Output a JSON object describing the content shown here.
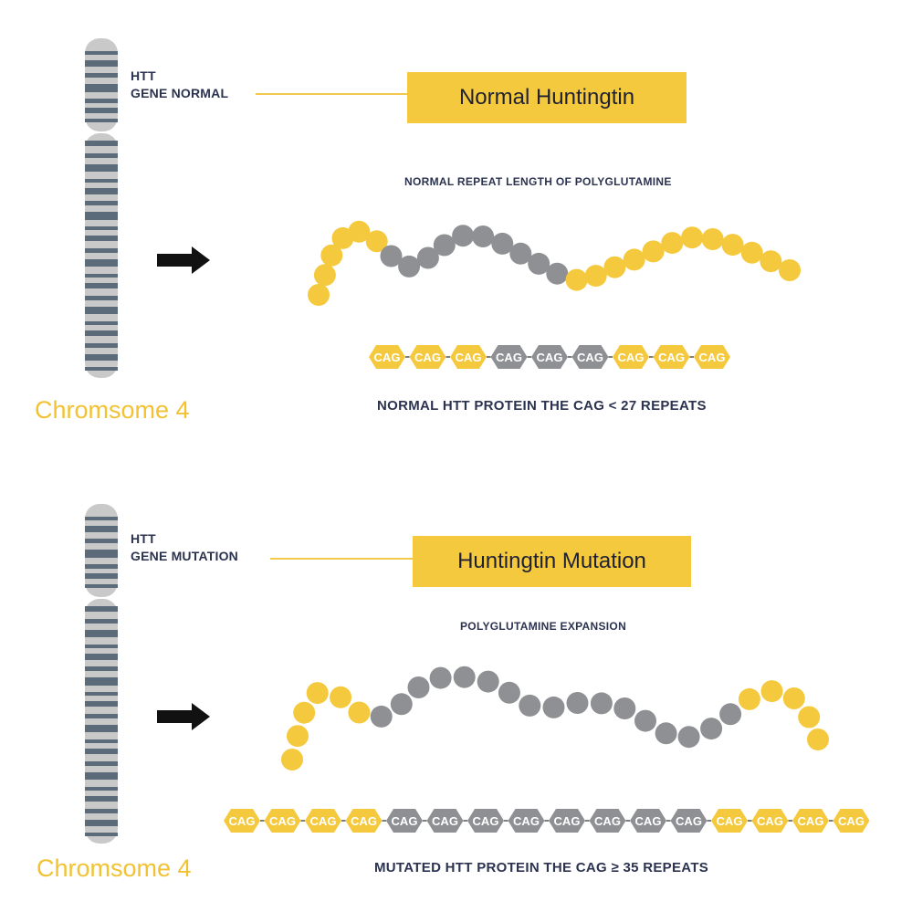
{
  "normal": {
    "gene_label_line1": "HTT",
    "gene_label_line2": "GENE NORMAL",
    "protein_title": "Normal Huntingtin",
    "subtitle": "NORMAL REPEAT LENGTH OF POLYGLUTAMINE",
    "chromosome_label": "Chromsome 4",
    "codon_label": "CAG",
    "codons": [
      "yellow",
      "yellow",
      "yellow",
      "gray",
      "gray",
      "gray",
      "yellow",
      "yellow",
      "yellow"
    ],
    "beads": [
      "yellow",
      "yellow",
      "yellow",
      "yellow",
      "yellow",
      "yellow",
      "gray",
      "gray",
      "gray",
      "gray",
      "gray",
      "gray",
      "gray",
      "gray",
      "gray",
      "gray",
      "yellow",
      "yellow",
      "yellow",
      "yellow",
      "yellow",
      "yellow",
      "yellow",
      "yellow",
      "yellow",
      "yellow",
      "yellow",
      "yellow"
    ],
    "caption": "NORMAL HTT PROTEIN THE CAG < 27 REPEATS"
  },
  "mutation": {
    "gene_label_line1": "HTT",
    "gene_label_line2": "GENE MUTATION",
    "protein_title": "Huntingtin Mutation",
    "subtitle": "POLYGLUTAMINE EXPANSION",
    "chromosome_label": "Chromsome 4",
    "codon_label": "CAG",
    "codons": [
      "yellow",
      "yellow",
      "yellow",
      "yellow",
      "gray",
      "gray",
      "gray",
      "gray",
      "gray",
      "gray",
      "gray",
      "gray",
      "yellow",
      "yellow",
      "yellow",
      "yellow"
    ],
    "beads": [
      "yellow",
      "yellow",
      "yellow",
      "yellow",
      "yellow",
      "yellow",
      "gray",
      "gray",
      "gray",
      "gray",
      "gray",
      "gray",
      "gray",
      "gray",
      "gray",
      "gray",
      "gray",
      "gray",
      "gray",
      "gray",
      "gray",
      "gray",
      "gray",
      "yellow",
      "yellow",
      "yellow",
      "yellow",
      "yellow"
    ],
    "caption": "MUTATED HTT PROTEIN THE CAG ≥ 35  REPEATS"
  },
  "colors": {
    "yellow": "#f5c93d",
    "gray": "#8e9094",
    "chromosome_base": "#c9c9c9",
    "chromosome_band": "#5b6b7a",
    "navy_text": "#2b3350",
    "arrow": "#111111"
  },
  "icons": {
    "arrow": "right-arrow-icon"
  }
}
